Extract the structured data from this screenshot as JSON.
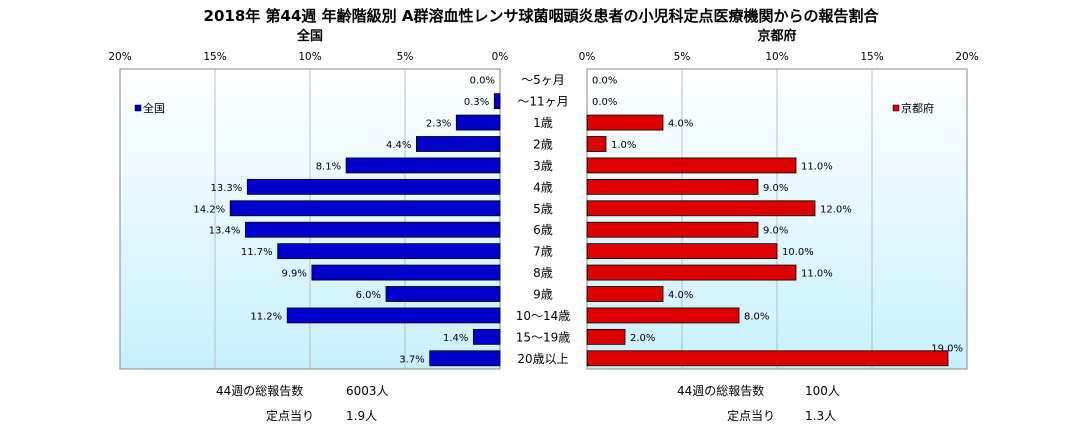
{
  "title": "2018年 第44週 年齢階級別 A群溶血性レンサ球菌咽頭炎患者の小児科定点医療機関からの報告割合",
  "chart_data": [
    {
      "type": "bar",
      "orientation": "horizontal",
      "subtitle": "全国",
      "legend": "全国",
      "legend_position": "top-left",
      "color": "#0000cc",
      "xlim": [
        0,
        20
      ],
      "direction": "reversed",
      "ticks": [
        "20%",
        "15%",
        "10%",
        "5%",
        "0%"
      ],
      "categories": [
        "～5ヶ月",
        "～11ヶ月",
        "1歳",
        "2歳",
        "3歳",
        "4歳",
        "5歳",
        "6歳",
        "7歳",
        "8歳",
        "9歳",
        "10～14歳",
        "15～19歳",
        "20歳以上"
      ],
      "series": [
        {
          "name": "全国",
          "values": [
            0.0,
            0.3,
            2.3,
            4.4,
            8.1,
            13.3,
            14.2,
            13.4,
            11.7,
            9.9,
            6.0,
            11.2,
            1.4,
            3.7
          ],
          "labels": [
            "0.0%",
            "0.3%",
            "2.3%",
            "4.4%",
            "8.1%",
            "13.3%",
            "14.2%",
            "13.4%",
            "11.7%",
            "9.9%",
            "6.0%",
            "11.2%",
            "1.4%",
            "3.7%"
          ]
        }
      ],
      "grid": true
    },
    {
      "type": "bar",
      "orientation": "horizontal",
      "subtitle": "京都府",
      "legend": "京都府",
      "legend_position": "top-right",
      "color": "#dd0000",
      "xlim": [
        0,
        20
      ],
      "direction": "normal",
      "ticks": [
        "0%",
        "5%",
        "10%",
        "15%",
        "20%"
      ],
      "categories": [
        "～5ヶ月",
        "～11ヶ月",
        "1歳",
        "2歳",
        "3歳",
        "4歳",
        "5歳",
        "6歳",
        "7歳",
        "8歳",
        "9歳",
        "10～14歳",
        "15～19歳",
        "20歳以上"
      ],
      "series": [
        {
          "name": "京都府",
          "values": [
            0.0,
            0.0,
            4.0,
            1.0,
            11.0,
            9.0,
            12.0,
            9.0,
            10.0,
            11.0,
            4.0,
            8.0,
            2.0,
            19.0
          ],
          "labels": [
            "0.0%",
            "0.0%",
            "4.0%",
            "1.0%",
            "11.0%",
            "9.0%",
            "12.0%",
            "9.0%",
            "10.0%",
            "11.0%",
            "4.0%",
            "8.0%",
            "2.0%",
            "19.0%"
          ]
        }
      ],
      "grid": true
    }
  ],
  "footer": {
    "national_total_label": "44週の総報告数",
    "national_total_value": "6003人",
    "national_per_label": "定点当り",
    "national_per_value": "1.9人",
    "kyoto_total_label": "44週の総報告数",
    "kyoto_total_value": "100人",
    "kyoto_per_label": "定点当り",
    "kyoto_per_value": "1.3人"
  }
}
